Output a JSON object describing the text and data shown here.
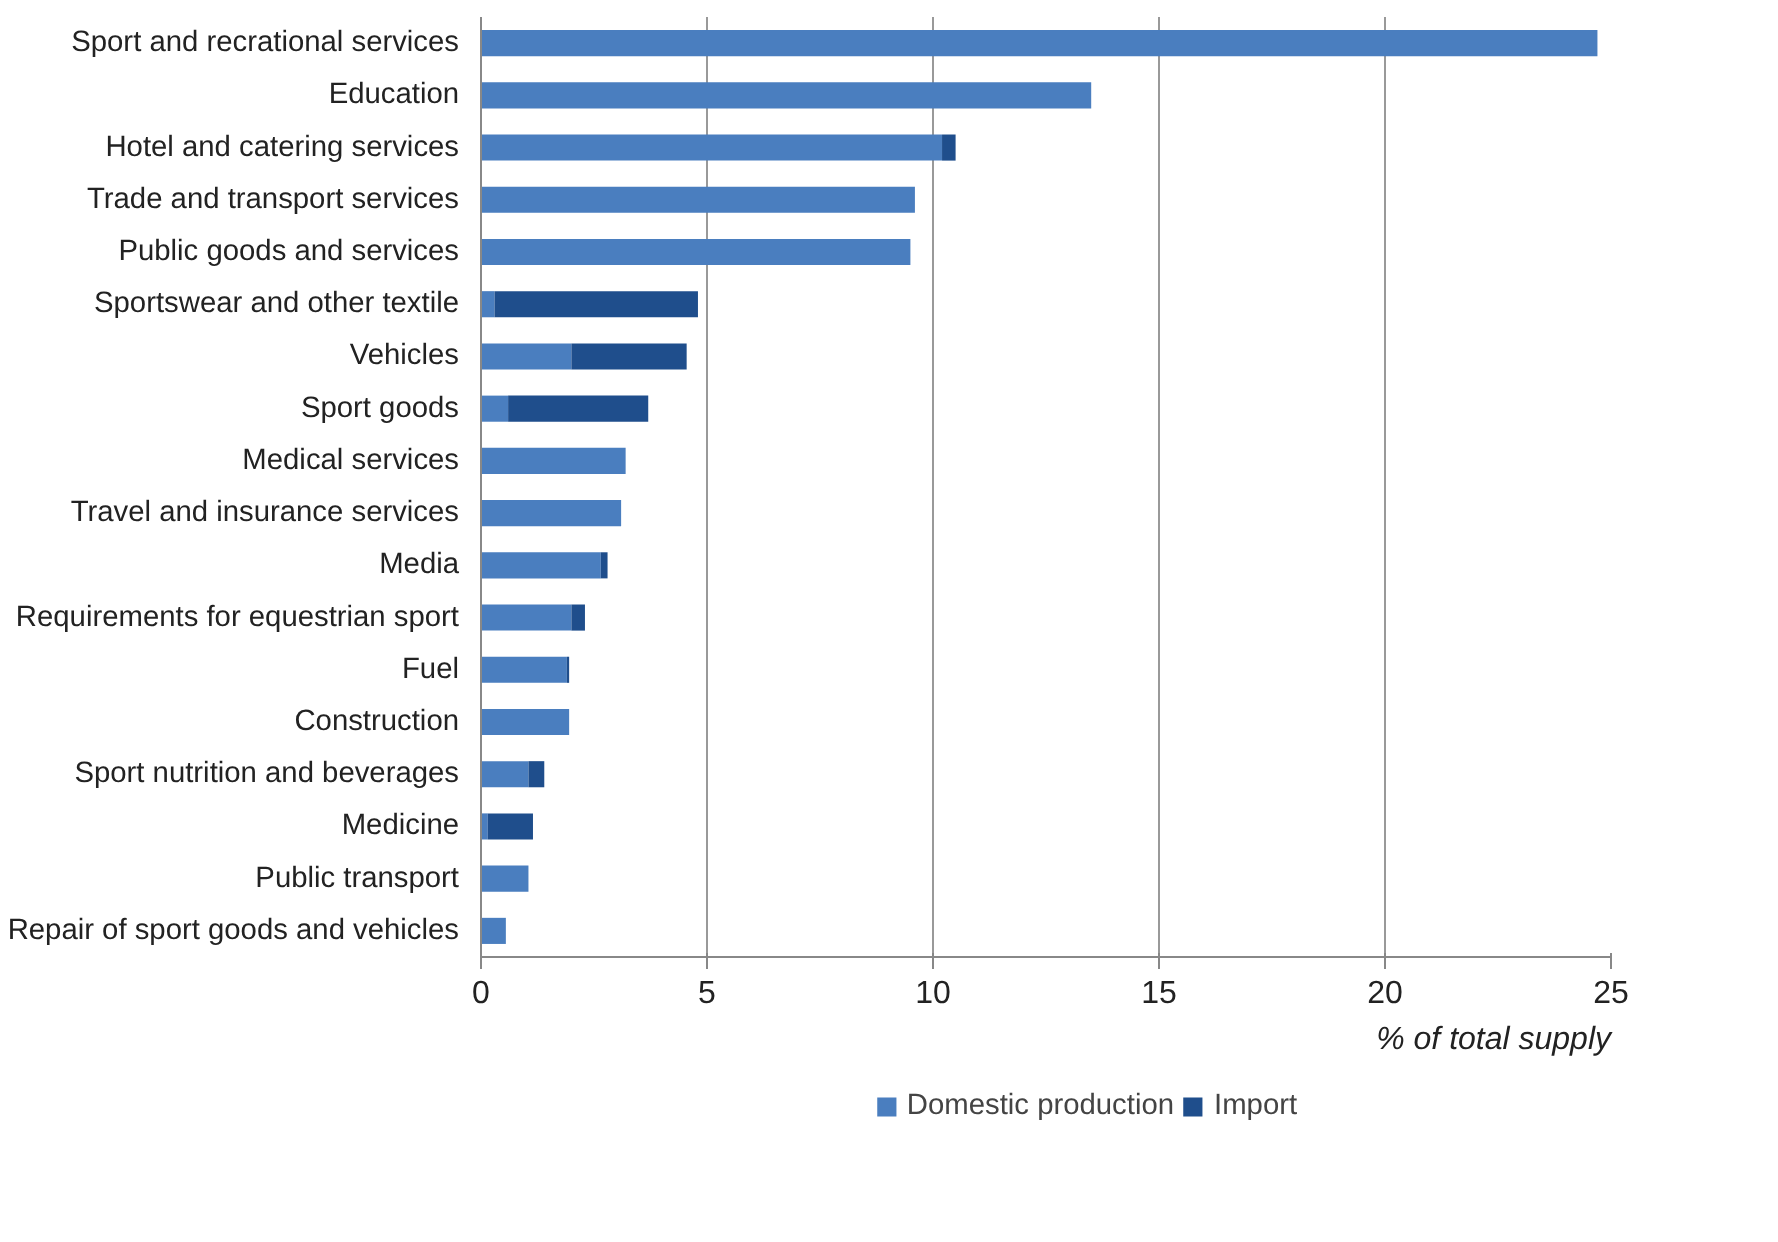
{
  "chart_data": {
    "type": "bar",
    "orientation": "horizontal",
    "stacked": true,
    "xlabel": "% of total supply",
    "categories": [
      "Sport and recrational services",
      "Education",
      "Hotel and catering services",
      "Trade and transport services",
      "Public goods and services",
      "Sportswear and other textile",
      "Vehicles",
      "Sport goods",
      "Medical services",
      "Travel and insurance services",
      "Media",
      "Requirements for equestrian sport",
      "Fuel",
      "Construction",
      "Sport nutrition and beverages",
      "Medicine",
      "Public transport",
      "Repair of sport goods and vehicles"
    ],
    "series": [
      {
        "name": "Domestic production",
        "color": "#4a7ebf",
        "values": [
          24.7,
          13.5,
          10.2,
          9.6,
          9.5,
          0.3,
          2.0,
          0.6,
          3.2,
          3.1,
          2.65,
          2.0,
          1.9,
          1.95,
          1.05,
          0.15,
          1.05,
          0.55
        ]
      },
      {
        "name": "Import",
        "color": "#1f4e8c",
        "values": [
          0,
          0,
          0.3,
          0,
          0,
          4.5,
          2.55,
          3.1,
          0,
          0,
          0.15,
          0.3,
          0.05,
          0,
          0.35,
          1.0,
          0,
          0
        ]
      }
    ],
    "xlim": [
      0,
      25
    ],
    "xticks": [
      0,
      5,
      10,
      15,
      20,
      25
    ],
    "grid": "x",
    "legend": "bottom"
  }
}
